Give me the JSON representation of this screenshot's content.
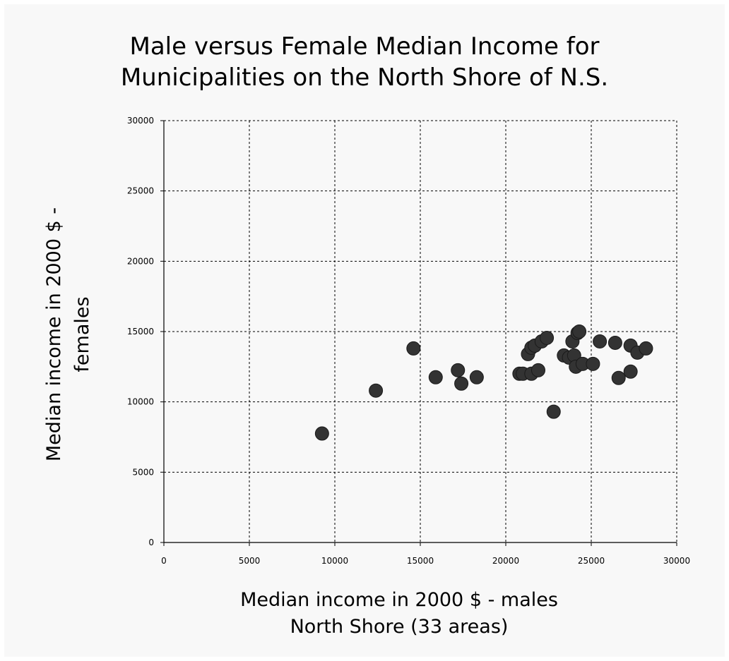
{
  "chart_data": {
    "type": "scatter",
    "title": "Male versus Female Median Income for\nMunicipalities on the North Shore of N.S.",
    "xlabel": "Median income in 2000 $ - males\nNorth Shore (33 areas)",
    "ylabel": "Median income in 2000 $ -\nfemales",
    "xlim": [
      0,
      30000
    ],
    "ylim": [
      0,
      30000
    ],
    "xticks": [
      "0",
      "5000",
      "10000",
      "15000",
      "20000",
      "25000",
      "30000"
    ],
    "yticks": [
      "0",
      "5000",
      "10000",
      "15000",
      "20000",
      "25000",
      "30000"
    ],
    "grid": true,
    "marker_color": "#333333",
    "series": [
      {
        "points": [
          {
            "x": 9250,
            "y": 7750
          },
          {
            "x": 12400,
            "y": 10800
          },
          {
            "x": 14600,
            "y": 13800
          },
          {
            "x": 15900,
            "y": 11750
          },
          {
            "x": 17200,
            "y": 12250
          },
          {
            "x": 17400,
            "y": 11300
          },
          {
            "x": 18300,
            "y": 11750
          },
          {
            "x": 20800,
            "y": 12000
          },
          {
            "x": 21000,
            "y": 12000
          },
          {
            "x": 21300,
            "y": 13400
          },
          {
            "x": 21500,
            "y": 12000
          },
          {
            "x": 21500,
            "y": 13850
          },
          {
            "x": 21700,
            "y": 14000
          },
          {
            "x": 21900,
            "y": 12250
          },
          {
            "x": 22100,
            "y": 14300
          },
          {
            "x": 22400,
            "y": 14550
          },
          {
            "x": 22800,
            "y": 9300
          },
          {
            "x": 23400,
            "y": 13300
          },
          {
            "x": 23700,
            "y": 13150
          },
          {
            "x": 23900,
            "y": 14300
          },
          {
            "x": 24000,
            "y": 13300
          },
          {
            "x": 24100,
            "y": 12500
          },
          {
            "x": 24200,
            "y": 14900
          },
          {
            "x": 24300,
            "y": 15000
          },
          {
            "x": 24500,
            "y": 12700
          },
          {
            "x": 25100,
            "y": 12700
          },
          {
            "x": 25500,
            "y": 14300
          },
          {
            "x": 26400,
            "y": 14200
          },
          {
            "x": 26600,
            "y": 11700
          },
          {
            "x": 27300,
            "y": 12150
          },
          {
            "x": 27300,
            "y": 14000
          },
          {
            "x": 27700,
            "y": 13500
          },
          {
            "x": 28200,
            "y": 13800
          }
        ]
      }
    ]
  }
}
